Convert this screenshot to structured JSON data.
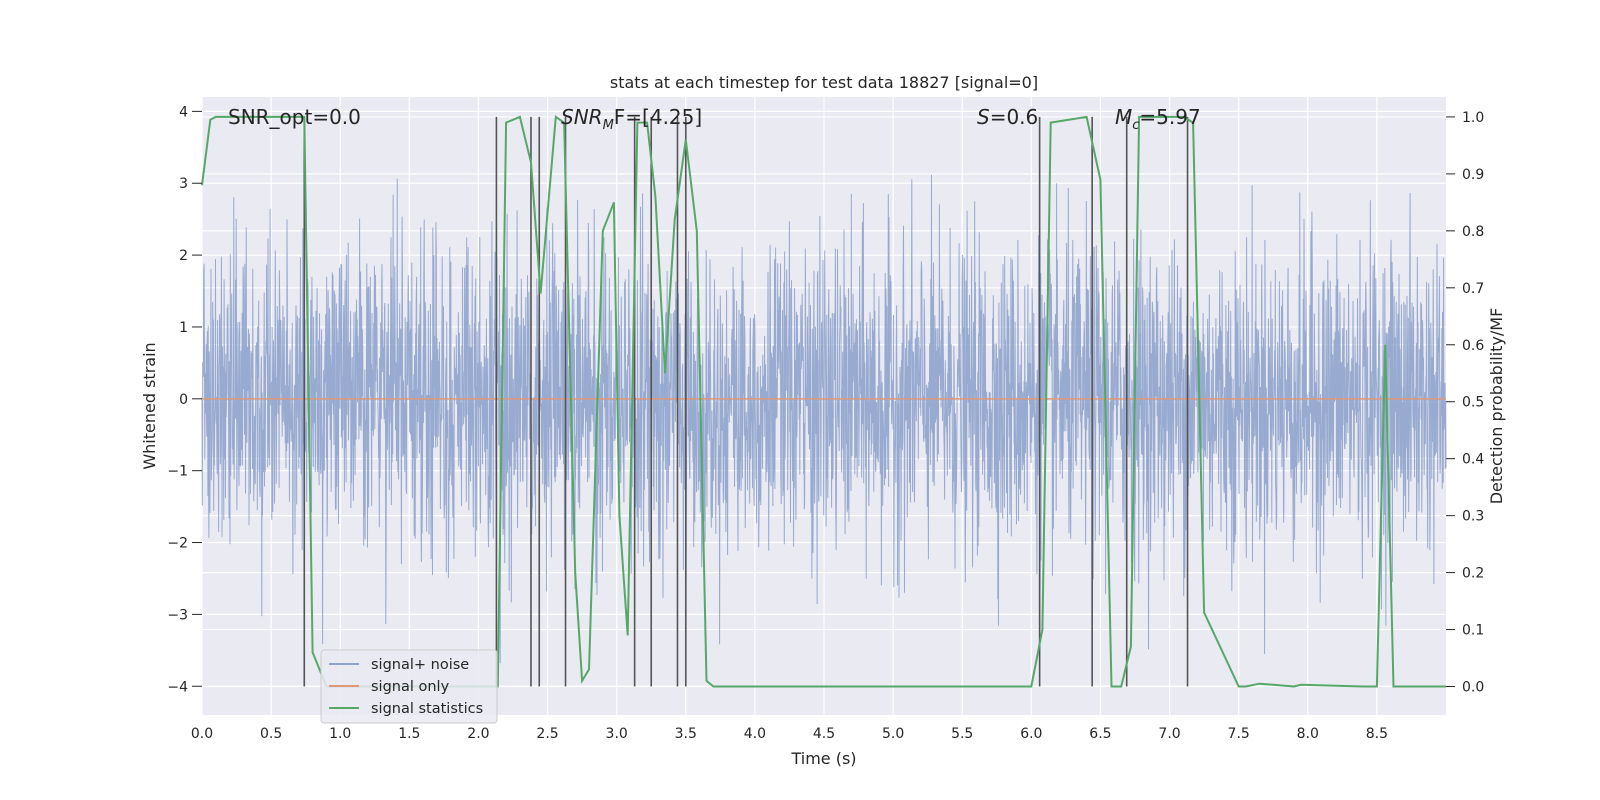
{
  "chart_data": {
    "type": "line",
    "title": "stats at each timestep for test data 18827 [signal=0]",
    "xlabel": "Time (s)",
    "ylabel_left": "Whitened strain",
    "ylabel_right": "Detection probability/MF",
    "xlim": [
      0.0,
      9.0
    ],
    "ylim_left": [
      -4.4,
      4.2
    ],
    "ylim_right": [
      -0.05,
      1.035
    ],
    "x_ticks": [
      "0.0",
      "0.5",
      "1.0",
      "1.5",
      "2.0",
      "2.5",
      "3.0",
      "3.5",
      "4.0",
      "4.5",
      "5.0",
      "5.5",
      "6.0",
      "6.5",
      "7.0",
      "7.5",
      "8.0",
      "8.5"
    ],
    "y_ticks_left": [
      "−4",
      "−3",
      "−2",
      "−1",
      "0",
      "1",
      "2",
      "3",
      "4"
    ],
    "y_ticks_right": [
      "0.0",
      "0.1",
      "0.2",
      "0.3",
      "0.4",
      "0.5",
      "0.6",
      "0.7",
      "0.8",
      "0.9",
      "1.0"
    ],
    "grid": true,
    "legend_position": "lower-left",
    "annotations": {
      "snr_opt": "SNR_opt=0.0",
      "snr_mf_prefix": "SNR",
      "snr_mf_sub": "M",
      "snr_mf_mid": "F=[4.25]",
      "s_label": "S",
      "s_value": "=0.6",
      "mc_label": "M",
      "mc_sub": "c",
      "mc_value": "=5.97"
    },
    "series": [
      {
        "name": "signal+ noise",
        "color": "#8fa3cc",
        "note": "whitened noise spanning approx ±2.5, peaks up to ±3.7"
      },
      {
        "name": "signal only",
        "color": "#e0987a",
        "values_constant": 0.0
      },
      {
        "name": "signal statistics",
        "color": "#55a868",
        "x": [
          0.0,
          0.06,
          0.1,
          0.5,
          0.74,
          0.8,
          0.9,
          1.0,
          1.5,
          2.0,
          2.1,
          2.14,
          2.2,
          2.3,
          2.38,
          2.45,
          2.56,
          2.62,
          2.7,
          2.75,
          2.8,
          2.9,
          2.98,
          3.02,
          3.08,
          3.15,
          3.22,
          3.28,
          3.35,
          3.42,
          3.5,
          3.58,
          3.65,
          3.7,
          4.0,
          5.0,
          6.0,
          6.08,
          6.14,
          6.4,
          6.5,
          6.58,
          6.65,
          6.72,
          6.78,
          7.1,
          7.17,
          7.25,
          7.5,
          7.55,
          7.65,
          7.9,
          7.95,
          8.4,
          8.5,
          8.56,
          8.62,
          9.0
        ],
        "values": [
          0.88,
          0.995,
          1.0,
          1.0,
          1.0,
          0.06,
          0.0,
          0.0,
          0.0,
          0.0,
          0.0,
          0.0,
          0.99,
          1.0,
          0.92,
          0.69,
          1.0,
          0.99,
          0.2,
          0.01,
          0.03,
          0.8,
          0.85,
          0.3,
          0.09,
          0.99,
          0.99,
          0.86,
          0.55,
          0.82,
          0.96,
          0.8,
          0.01,
          0.0,
          0.0,
          0.0,
          0.0,
          0.1,
          0.99,
          1.0,
          0.89,
          0.0,
          0.0,
          0.07,
          1.0,
          1.0,
          0.99,
          0.13,
          0.0,
          0.0,
          0.005,
          0.0,
          0.003,
          0.0,
          0.0,
          0.6,
          0.0,
          0.0
        ]
      }
    ],
    "vertical_markers_x": [
      0.74,
      2.13,
      2.38,
      2.44,
      2.63,
      3.13,
      3.25,
      3.44,
      3.5,
      6.06,
      6.44,
      6.69,
      7.13
    ],
    "vertical_marker_color": "#555555"
  }
}
